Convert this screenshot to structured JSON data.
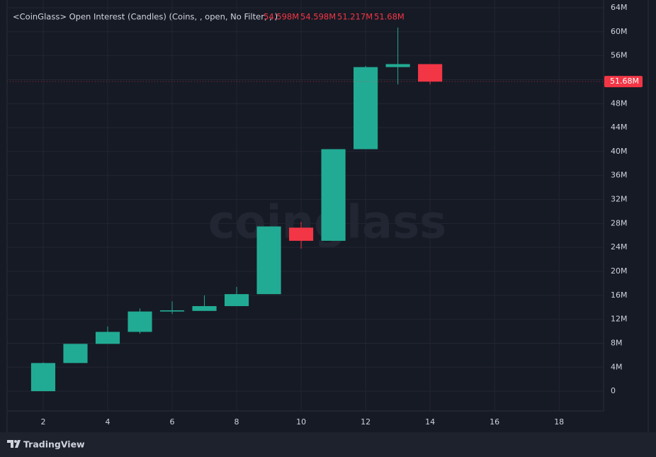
{
  "chart_data": {
    "type": "candlestick",
    "title": "<CoinGlass> Open Interest (Candles) (Coins, , open, No Filter, , )",
    "ohlc_text": [
      "54.598M",
      "54.598M",
      "51.217M",
      "51.68M"
    ],
    "last_price_label": "51.68M",
    "watermark": "coinglass",
    "brand": "TradingView",
    "x": [
      2,
      3,
      4,
      5,
      6,
      7,
      8,
      9,
      10,
      11,
      12,
      13,
      14
    ],
    "open": [
      0,
      4.7,
      7.9,
      9.9,
      13.3,
      13.4,
      14.2,
      16.2,
      27.3,
      25.1,
      40.4,
      54.1,
      54.598
    ],
    "high": [
      4.8,
      7.9,
      10.8,
      13.8,
      15.0,
      16.0,
      17.4,
      27.5,
      28.3,
      40.4,
      54.3,
      60.7,
      54.598
    ],
    "low": [
      0,
      4.7,
      7.9,
      9.6,
      12.9,
      13.4,
      14.2,
      16.2,
      23.8,
      25.1,
      40.4,
      51.2,
      51.217
    ],
    "close": [
      4.7,
      7.9,
      9.9,
      13.3,
      13.5,
      14.2,
      16.2,
      27.5,
      25.1,
      40.4,
      54.1,
      54.6,
      51.68
    ],
    "up_color": "#22ab94",
    "down_color": "#f23645",
    "xlim": [
      0.88,
      19.38
    ],
    "ylim": [
      -3.3,
      65.3
    ],
    "xticks": [
      2,
      4,
      6,
      8,
      10,
      12,
      14,
      16,
      18
    ],
    "yticks": [
      {
        "value": 0,
        "label": "0"
      },
      {
        "value": 4,
        "label": "4M"
      },
      {
        "value": 8,
        "label": "8M"
      },
      {
        "value": 12,
        "label": "12M"
      },
      {
        "value": 16,
        "label": "16M"
      },
      {
        "value": 20,
        "label": "20M"
      },
      {
        "value": 24,
        "label": "24M"
      },
      {
        "value": 28,
        "label": "28M"
      },
      {
        "value": 32,
        "label": "32M"
      },
      {
        "value": 36,
        "label": "36M"
      },
      {
        "value": 40,
        "label": "40M"
      },
      {
        "value": 44,
        "label": "44M"
      },
      {
        "value": 48,
        "label": "48M"
      },
      {
        "value": 52,
        "label": "52M"
      },
      {
        "value": 56,
        "label": "56M"
      },
      {
        "value": 60,
        "label": "60M"
      },
      {
        "value": 64,
        "label": "64M"
      }
    ],
    "grid": true
  }
}
